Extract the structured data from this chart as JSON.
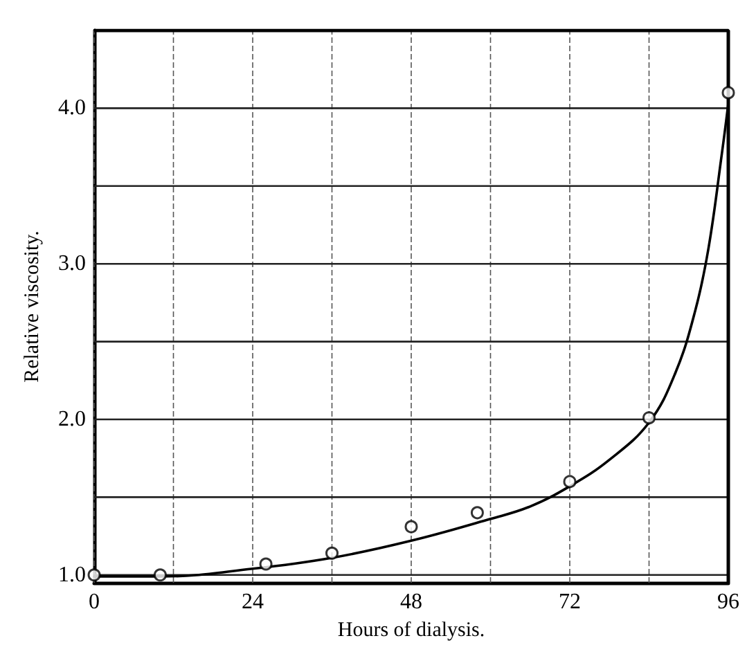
{
  "chart_data": {
    "type": "scatter",
    "xlabel": "Hours of dialysis.",
    "ylabel": "Relative viscosity.",
    "xlim": [
      0,
      96
    ],
    "ylim": [
      0.95,
      4.5
    ],
    "xticks": [
      0,
      {
        "value": 12,
        "label": null
      },
      24,
      {
        "value": 36,
        "label": null
      },
      48,
      {
        "value": 60,
        "label": null
      },
      72,
      {
        "value": 84,
        "label": null
      },
      96
    ],
    "yticks": [
      {
        "value": 1,
        "label": "1.0"
      },
      {
        "value": 1.5,
        "label": null
      },
      {
        "value": 2,
        "label": "2.0"
      },
      {
        "value": 2.5,
        "label": null
      },
      {
        "value": 3,
        "label": "3.0"
      },
      {
        "value": 3.5,
        "label": null
      },
      {
        "value": 4,
        "label": "4.0"
      }
    ],
    "grid": true,
    "series": [
      {
        "marker": "circle",
        "color": "#000000",
        "x": [
          0,
          10,
          26,
          36,
          48,
          58,
          72,
          84,
          96
        ],
        "values": [
          1.0,
          1.0,
          1.07,
          1.14,
          1.31,
          1.4,
          1.6,
          2.01,
          4.1
        ]
      },
      {
        "type": "line",
        "marker": "none",
        "line_style": "solid",
        "color": "#000000",
        "x": [
          0,
          10,
          24,
          36,
          48,
          60,
          66,
          72,
          78,
          84,
          88,
          91,
          93,
          95,
          96
        ],
        "values": [
          0.99,
          0.99,
          1.04,
          1.11,
          1.22,
          1.36,
          1.44,
          1.57,
          1.74,
          1.98,
          2.3,
          2.7,
          3.1,
          3.7,
          4.03
        ]
      }
    ]
  }
}
